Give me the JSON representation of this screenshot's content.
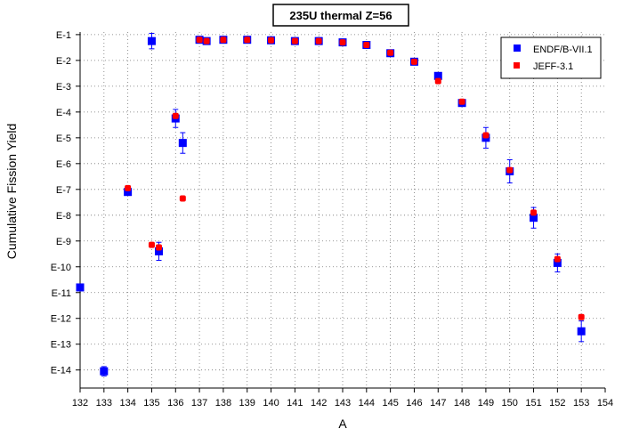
{
  "chart_data": {
    "type": "scatter",
    "title": "235U thermal Z=56",
    "xlabel": "A",
    "ylabel": "Cumulative Fission Yield",
    "xlim": [
      132,
      154
    ],
    "ylim": [
      -14.7,
      -0.9
    ],
    "y_scale": "log",
    "grid": true,
    "legend_position": "top-right",
    "x_ticks": [
      "132",
      "133",
      "134",
      "135",
      "136",
      "137",
      "138",
      "139",
      "140",
      "141",
      "142",
      "143",
      "144",
      "145",
      "146",
      "147",
      "148",
      "149",
      "150",
      "151",
      "152",
      "153",
      "154"
    ],
    "y_ticks": [
      {
        "value": -1,
        "label": "E-1"
      },
      {
        "value": -2,
        "label": "E-2"
      },
      {
        "value": -3,
        "label": "E-3"
      },
      {
        "value": -4,
        "label": "E-4"
      },
      {
        "value": -5,
        "label": "E-5"
      },
      {
        "value": -6,
        "label": "E-6"
      },
      {
        "value": -7,
        "label": "E-7"
      },
      {
        "value": -8,
        "label": "E-8"
      },
      {
        "value": -9,
        "label": "E-9"
      },
      {
        "value": -10,
        "label": "E-10"
      },
      {
        "value": -11,
        "label": "E-11"
      },
      {
        "value": -12,
        "label": "E-12"
      },
      {
        "value": -13,
        "label": "E-13"
      },
      {
        "value": -14,
        "label": "E-14"
      }
    ],
    "series": [
      {
        "name": "ENDF/B-VII.1",
        "color": "#0000ff",
        "marker": "square",
        "points": [
          {
            "x": 132,
            "y": -10.8
          },
          {
            "x": 133,
            "y": -14.05,
            "err": 0.18
          },
          {
            "x": 134,
            "y": -7.1
          },
          {
            "x": 135,
            "y": -1.25,
            "err": 0.3
          },
          {
            "x": 135.3,
            "y": -9.4,
            "err": 0.35
          },
          {
            "x": 136,
            "y": -4.25,
            "err": 0.35
          },
          {
            "x": 136.3,
            "y": -5.2,
            "err": 0.4
          },
          {
            "x": 137,
            "y": -1.2
          },
          {
            "x": 137.3,
            "y": -1.25
          },
          {
            "x": 138,
            "y": -1.2
          },
          {
            "x": 139,
            "y": -1.2
          },
          {
            "x": 140,
            "y": -1.22
          },
          {
            "x": 141,
            "y": -1.25
          },
          {
            "x": 142,
            "y": -1.25
          },
          {
            "x": 143,
            "y": -1.3
          },
          {
            "x": 144,
            "y": -1.4
          },
          {
            "x": 145,
            "y": -1.72
          },
          {
            "x": 146,
            "y": -2.05
          },
          {
            "x": 147,
            "y": -2.6
          },
          {
            "x": 148,
            "y": -3.65
          },
          {
            "x": 149,
            "y": -5.0,
            "err": 0.4
          },
          {
            "x": 150,
            "y": -6.3,
            "err": 0.45
          },
          {
            "x": 151,
            "y": -8.1,
            "err": 0.4
          },
          {
            "x": 152,
            "y": -9.85,
            "err": 0.35
          },
          {
            "x": 153,
            "y": -12.5,
            "err": 0.4
          }
        ]
      },
      {
        "name": "JEFF-3.1",
        "color": "#ff0000",
        "marker": "circle",
        "points": [
          {
            "x": 134,
            "y": -6.95
          },
          {
            "x": 135,
            "y": -9.15
          },
          {
            "x": 135.3,
            "y": -9.25
          },
          {
            "x": 136,
            "y": -4.15
          },
          {
            "x": 136.3,
            "y": -7.35
          },
          {
            "x": 137,
            "y": -1.2
          },
          {
            "x": 137.3,
            "y": -1.25
          },
          {
            "x": 138,
            "y": -1.2
          },
          {
            "x": 139,
            "y": -1.2
          },
          {
            "x": 140,
            "y": -1.22
          },
          {
            "x": 141,
            "y": -1.25
          },
          {
            "x": 142,
            "y": -1.25
          },
          {
            "x": 143,
            "y": -1.3
          },
          {
            "x": 144,
            "y": -1.4
          },
          {
            "x": 145,
            "y": -1.7
          },
          {
            "x": 146,
            "y": -2.05
          },
          {
            "x": 147,
            "y": -2.8
          },
          {
            "x": 148,
            "y": -3.6
          },
          {
            "x": 149,
            "y": -4.9
          },
          {
            "x": 150,
            "y": -6.25
          },
          {
            "x": 151,
            "y": -7.9
          },
          {
            "x": 152,
            "y": -9.7
          },
          {
            "x": 153,
            "y": -11.95
          }
        ]
      }
    ]
  }
}
